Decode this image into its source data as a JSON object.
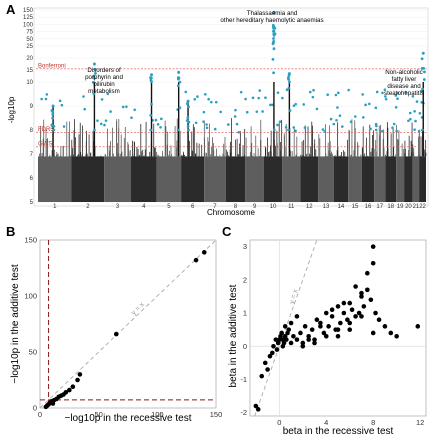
{
  "panel_letters": [
    "A",
    "B",
    "C"
  ],
  "chart_data": [
    {
      "type": "scatter",
      "subtype": "manhattan",
      "xlabel": "Chromosome",
      "ylabel": "-log10p",
      "x_tick_labels": [
        "1",
        "2",
        "3",
        "4",
        "5",
        "6",
        "7",
        "8",
        "9",
        "10",
        "11",
        "12",
        "13",
        "14",
        "15",
        "16",
        "17",
        "18",
        "19",
        "20",
        "21",
        "22"
      ],
      "y_scale": "compressed above 10",
      "y_tick_labels": [
        "5",
        "6",
        "7",
        "8",
        "9",
        "10",
        "15",
        "20",
        "25",
        "50",
        "75",
        "100",
        "125",
        "150"
      ],
      "y_tick_values": [
        5,
        6,
        7,
        8,
        9,
        10,
        15,
        20,
        25,
        50,
        75,
        100,
        125,
        150
      ],
      "ylim": [
        5,
        150
      ],
      "thresholds": [
        {
          "label": "Bonferroni",
          "value": 15.5,
          "color": "#d9534f"
        },
        {
          "label": "FDR5",
          "value": 7.9,
          "color": "#d9534f"
        },
        {
          "label": "GWS",
          "value": 7.3,
          "color": "#d9534f"
        }
      ],
      "annotations": [
        {
          "text": [
            "Disorders of",
            "porphyrin and",
            "bilirubin",
            "metabolism"
          ],
          "chromosome": 2
        },
        {
          "text": [
            "Thalassaemia and",
            "other hereditary haemolytic anaemias"
          ],
          "chromosome": 10
        },
        {
          "text": [
            "Non-alcoholic",
            "fatty liver",
            "disease and",
            "steatohepatitis"
          ],
          "chromosome": 22
        }
      ],
      "colors": {
        "odd": "#5e5e5e",
        "even": "#2b2b2b",
        "hit": "#2a9fc0"
      },
      "peaks": [
        {
          "chromosome": 1,
          "position": 0.45,
          "value": 9.0
        },
        {
          "chromosome": 2,
          "position": 0.7,
          "value": 17.5
        },
        {
          "chromosome": 4,
          "position": 0.8,
          "value": 13.0
        },
        {
          "chromosome": 5,
          "position": 0.9,
          "value": 14.0
        },
        {
          "chromosome": 6,
          "position": 0.3,
          "value": 9.2
        },
        {
          "chromosome": 10,
          "position": 0.55,
          "value": 142.0
        },
        {
          "chromosome": 11,
          "position": 0.4,
          "value": 13.5
        },
        {
          "chromosome": 22,
          "position": 0.6,
          "value": 22.0
        }
      ]
    },
    {
      "type": "scatter",
      "xlabel": "−log10p in the recessive test",
      "ylabel": "−log10p in the additive test",
      "xlim": [
        0,
        150
      ],
      "ylim": [
        0,
        150
      ],
      "x_ticks": [
        0,
        50,
        100,
        150
      ],
      "y_ticks": [
        0,
        50,
        100,
        150
      ],
      "reference_line": "y = x",
      "threshold": 7.3,
      "x": [
        5,
        6,
        7,
        8,
        9,
        10,
        11,
        12,
        14,
        16,
        18,
        20,
        22,
        25,
        28,
        32,
        34,
        65,
        133,
        140
      ],
      "y": [
        1,
        2,
        3,
        4,
        5,
        6,
        4,
        7,
        8,
        10,
        11,
        12,
        14,
        16,
        19,
        25,
        30,
        66,
        132,
        139
      ]
    },
    {
      "type": "scatter",
      "xlabel": "beta in the recessive test",
      "ylabel": "beta in the additive test",
      "xlim": [
        -2.5,
        12.5
      ],
      "ylim": [
        -2.1,
        3.2
      ],
      "x_ticks": [
        0,
        4,
        8,
        12
      ],
      "y_ticks": [
        -2,
        -1,
        0,
        1,
        2,
        3
      ],
      "reference_line": "y = x",
      "x": [
        -2.0,
        -1.8,
        -1.5,
        -1.2,
        -1.0,
        -0.8,
        -0.6,
        -0.5,
        -0.3,
        -0.1,
        0.0,
        0.1,
        0.2,
        0.3,
        0.4,
        0.5,
        0.6,
        0.8,
        1.0,
        1.2,
        1.5,
        1.8,
        2.0,
        2.2,
        2.5,
        2.8,
        3.0,
        3.2,
        3.5,
        3.8,
        4.0,
        4.2,
        4.5,
        4.8,
        5.0,
        5.2,
        5.5,
        5.8,
        6.0,
        6.2,
        6.5,
        6.8,
        7.0,
        7.2,
        7.5,
        7.8,
        8.0,
        8.2,
        8.5,
        9.0,
        9.5,
        10.0,
        11.8,
        2.0,
        3.0,
        4.0,
        5.0,
        6.0,
        7.0,
        8.0,
        0.5,
        1.0,
        1.5,
        2.5,
        3.5,
        4.5,
        5.5,
        6.5,
        7.5,
        8.0,
        5.0,
        6.0,
        7.0,
        0.3,
        0.7,
        -0.2
      ],
      "y": [
        -1.8,
        -1.9,
        -0.9,
        -0.5,
        -0.7,
        -0.3,
        -0.2,
        0.0,
        0.2,
        0.1,
        0.2,
        0.3,
        0.4,
        0.2,
        0.1,
        0.3,
        0.2,
        0.5,
        0.1,
        0.3,
        0.2,
        0.4,
        0.1,
        0.6,
        0.3,
        0.5,
        0.2,
        0.8,
        0.7,
        0.4,
        1.0,
        0.6,
        0.9,
        0.5,
        1.2,
        0.7,
        1.0,
        0.8,
        1.3,
        1.1,
        1.8,
        1.0,
        1.6,
        1.2,
        2.2,
        1.4,
        3.0,
        1.0,
        0.8,
        0.6,
        0.4,
        0.3,
        0.6,
        0.0,
        0.1,
        0.3,
        0.5,
        0.7,
        1.5,
        2.5,
        0.6,
        0.7,
        0.9,
        0.2,
        0.6,
        1.1,
        1.3,
        0.9,
        1.7,
        0.4,
        0.3,
        0.5,
        0.9,
        0.0,
        0.4,
        -0.1
      ]
    }
  ]
}
